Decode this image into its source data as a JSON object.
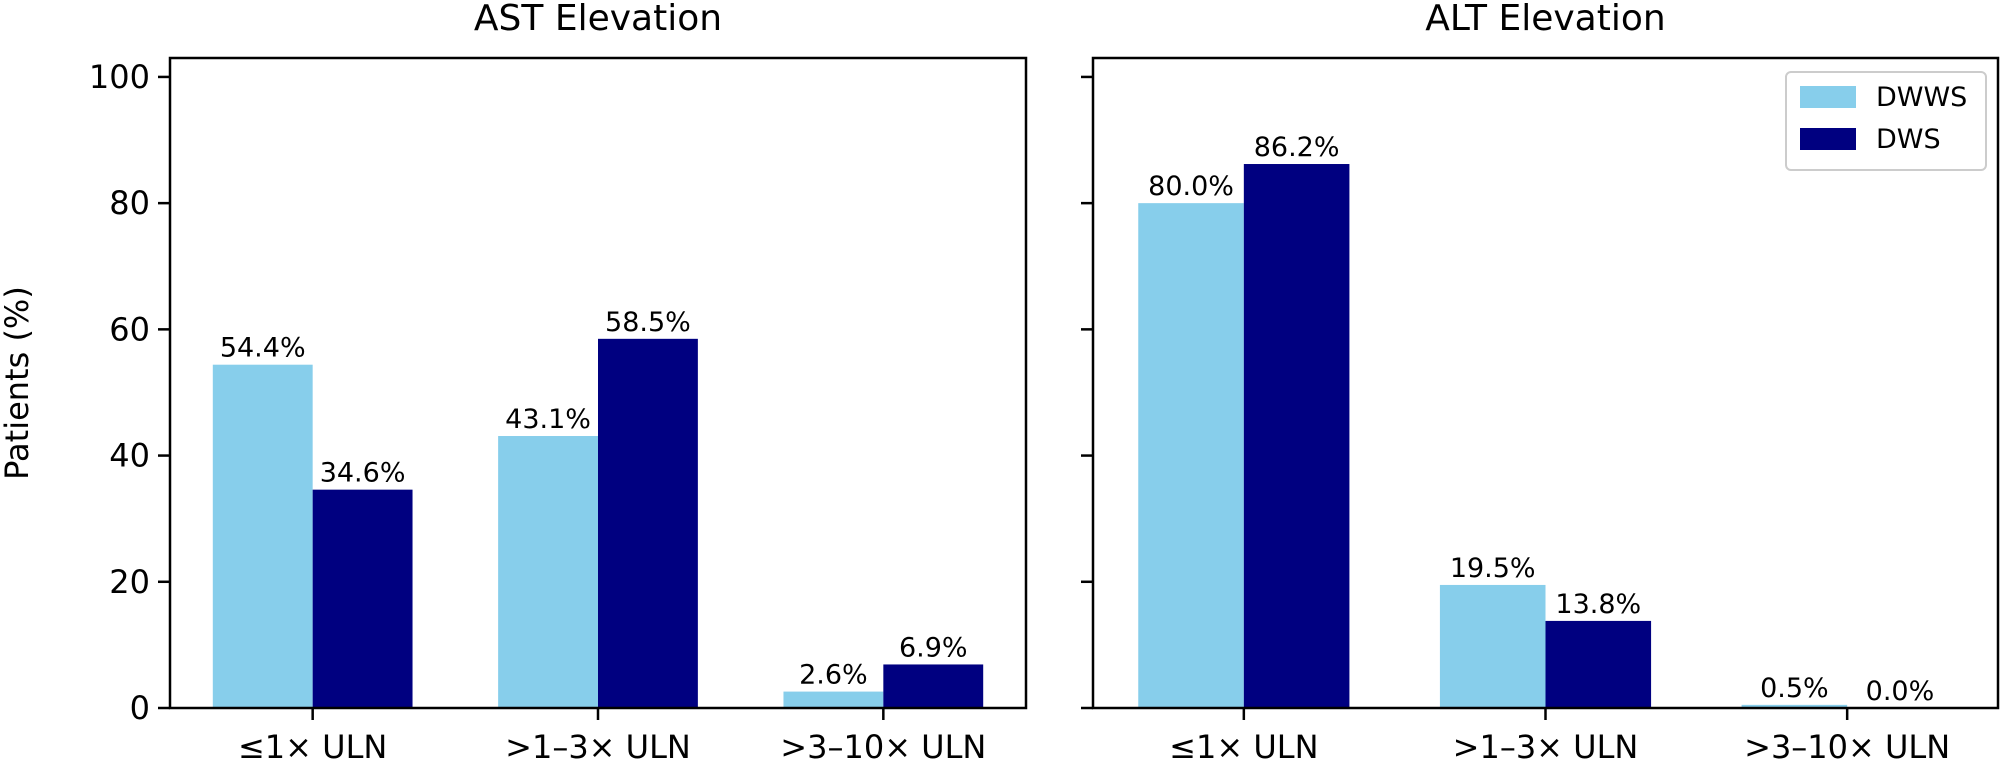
{
  "chart_data": [
    {
      "type": "bar",
      "title": "AST Elevation",
      "ylabel": "Patients (%)",
      "xlabel": "",
      "categories": [
        "≤1× ULN",
        ">1–3× ULN",
        ">3–10× ULN"
      ],
      "ylim": [
        0,
        103
      ],
      "yticks": [
        0,
        20,
        40,
        60,
        80,
        100
      ],
      "series": [
        {
          "name": "DWWS",
          "color": "#87ceeb",
          "values": [
            54.4,
            43.1,
            2.6
          ],
          "labels": [
            "54.4%",
            "43.1%",
            "2.6%"
          ]
        },
        {
          "name": "DWS",
          "color": "#000080",
          "values": [
            34.6,
            58.5,
            6.9
          ],
          "labels": [
            "34.6%",
            "58.5%",
            "6.9%"
          ]
        }
      ],
      "legend": false
    },
    {
      "type": "bar",
      "title": "ALT Elevation",
      "ylabel": "",
      "xlabel": "",
      "categories": [
        "≤1× ULN",
        ">1–3× ULN",
        ">3–10× ULN"
      ],
      "ylim": [
        0,
        103
      ],
      "yticks": [
        0,
        20,
        40,
        60,
        80,
        100
      ],
      "series": [
        {
          "name": "DWWS",
          "color": "#87ceeb",
          "values": [
            80.0,
            19.5,
            0.5
          ],
          "labels": [
            "80.0%",
            "19.5%",
            "0.5%"
          ]
        },
        {
          "name": "DWS",
          "color": "#000080",
          "values": [
            86.2,
            13.8,
            0.0
          ],
          "labels": [
            "86.2%",
            "13.8%",
            "0.0%"
          ]
        }
      ],
      "legend": "upper right"
    }
  ]
}
